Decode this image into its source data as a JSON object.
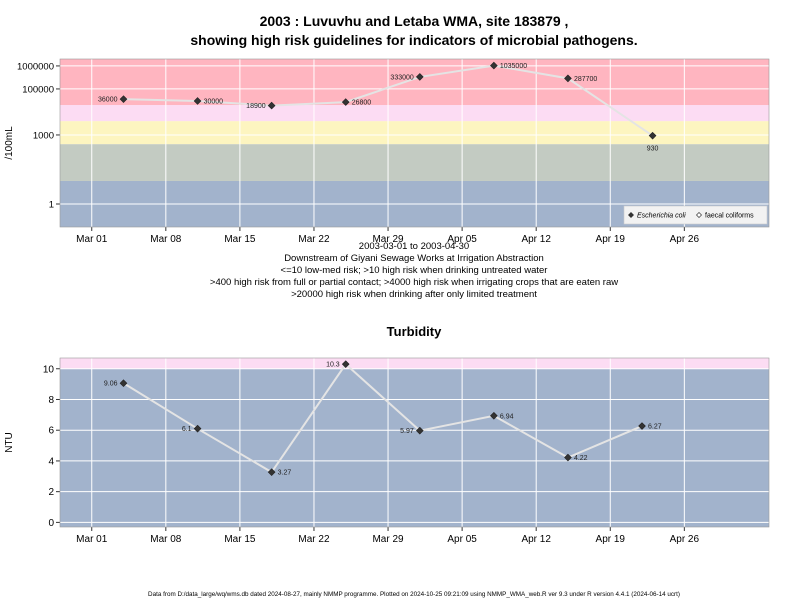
{
  "figure": {
    "title_line1": "2003 : Luvuvhu and Letaba WMA, site 183879 ,",
    "title_line2": "showing high risk guidelines for indicators of microbial pathogens.",
    "footer": "Data from D:/data_large/wq/wms.db dated 2024-08-27, mainly NMMP programme. Plotted on 2024-10-25 09:21:09 using NMMP_WMA_web.R ver 9.3 under R version 4.4.1 (2024-06-14 ucrt)"
  },
  "chart_data": [
    {
      "type": "line",
      "ylabel": "/100mL",
      "yscale": "log10",
      "ylim": [
        0.1,
        2000000
      ],
      "xlim": [
        "2003-02-26",
        "2003-05-04"
      ],
      "x_ticks": [
        {
          "date": "2003-03-01",
          "label": "Mar 01"
        },
        {
          "date": "2003-03-08",
          "label": "Mar 08"
        },
        {
          "date": "2003-03-15",
          "label": "Mar 15"
        },
        {
          "date": "2003-03-22",
          "label": "Mar 22"
        },
        {
          "date": "2003-03-29",
          "label": "Mar 29"
        },
        {
          "date": "2003-04-05",
          "label": "Apr 05"
        },
        {
          "date": "2003-04-12",
          "label": "Apr 12"
        },
        {
          "date": "2003-04-19",
          "label": "Apr 19"
        },
        {
          "date": "2003-04-26",
          "label": "Apr 26"
        }
      ],
      "y_ticks": [
        {
          "value": 1,
          "label": "1"
        },
        {
          "value": 1000,
          "label": "1000"
        },
        {
          "value": 100000,
          "label": "100000"
        },
        {
          "value": 1000000,
          "label": "1000000"
        }
      ],
      "risk_bands": [
        {
          "from": 0.1,
          "to": 10,
          "color": "#a2b3cc"
        },
        {
          "from": 10,
          "to": 400,
          "color": "#c3cbc2"
        },
        {
          "from": 400,
          "to": 4000,
          "color": "#fdf5c0"
        },
        {
          "from": 4000,
          "to": 20000,
          "color": "#fcdcf3"
        },
        {
          "from": 20000,
          "to": 2000000,
          "color": "#ffb5c0"
        }
      ],
      "grid": true,
      "series": [
        {
          "name": "Escherichia coli",
          "points": [
            {
              "date": "2003-03-04",
              "value": 36000,
              "label": "36000",
              "side": "left"
            },
            {
              "date": "2003-03-11",
              "value": 30000,
              "label": "30000",
              "side": "right"
            },
            {
              "date": "2003-03-18",
              "value": 18900,
              "label": "18900",
              "side": "left"
            },
            {
              "date": "2003-03-25",
              "value": 26800,
              "label": "26800",
              "side": "right"
            },
            {
              "date": "2003-04-01",
              "value": 333000,
              "label": "333000",
              "side": "left"
            },
            {
              "date": "2003-04-08",
              "value": 1035000,
              "label": "1035000",
              "side": "right"
            },
            {
              "date": "2003-04-15",
              "value": 287700,
              "label": "287700",
              "side": "right"
            },
            {
              "date": "2003-04-23",
              "value": 930,
              "label": "930",
              "side": "below"
            }
          ]
        }
      ],
      "legend": {
        "placement": "bottom-right",
        "items": [
          {
            "label": "Escherichia coli",
            "italic": true,
            "marker": "filled-diamond"
          },
          {
            "label": "faecal coliforms",
            "italic": false,
            "marker": "open-diamond"
          }
        ]
      },
      "notes": [
        "2003-03-01 to 2003-04-30",
        "Downstream of Giyani Sewage Works at Irrigation Abstraction",
        "<=10 low-med risk; >10 high risk when drinking untreated water",
        ">400 high risk from full or partial contact; >4000 high risk when irrigating crops that are eaten raw",
        ">20000 high risk when drinking after only limited treatment"
      ]
    },
    {
      "type": "line",
      "title": "Turbidity",
      "ylabel": "NTU",
      "ylim": [
        -0.3,
        10.7
      ],
      "xlim": [
        "2003-02-26",
        "2003-05-04"
      ],
      "x_ticks": [
        {
          "date": "2003-03-01",
          "label": "Mar 01"
        },
        {
          "date": "2003-03-08",
          "label": "Mar 08"
        },
        {
          "date": "2003-03-15",
          "label": "Mar 15"
        },
        {
          "date": "2003-03-22",
          "label": "Mar 22"
        },
        {
          "date": "2003-03-29",
          "label": "Mar 29"
        },
        {
          "date": "2003-04-05",
          "label": "Apr 05"
        },
        {
          "date": "2003-04-12",
          "label": "Apr 12"
        },
        {
          "date": "2003-04-19",
          "label": "Apr 19"
        },
        {
          "date": "2003-04-26",
          "label": "Apr 26"
        }
      ],
      "y_ticks": [
        {
          "value": 0,
          "label": "0"
        },
        {
          "value": 2,
          "label": "2"
        },
        {
          "value": 4,
          "label": "4"
        },
        {
          "value": 6,
          "label": "6"
        },
        {
          "value": 8,
          "label": "8"
        },
        {
          "value": 10,
          "label": "10"
        }
      ],
      "risk_bands": [
        {
          "from": -0.3,
          "to": 10,
          "color": "#a2b3cc"
        },
        {
          "from": 10,
          "to": 10.7,
          "color": "#fcdcf3"
        }
      ],
      "grid": true,
      "series": [
        {
          "points": [
            {
              "date": "2003-03-04",
              "value": 9.06,
              "label": "9.06",
              "side": "left"
            },
            {
              "date": "2003-03-11",
              "value": 6.1,
              "label": "6.1",
              "side": "left"
            },
            {
              "date": "2003-03-18",
              "value": 3.27,
              "label": "3.27",
              "side": "right"
            },
            {
              "date": "2003-03-25",
              "value": 10.3,
              "label": "10.3",
              "side": "left"
            },
            {
              "date": "2003-04-01",
              "value": 5.97,
              "label": "5.97",
              "side": "left"
            },
            {
              "date": "2003-04-08",
              "value": 6.94,
              "label": "6.94",
              "side": "right"
            },
            {
              "date": "2003-04-15",
              "value": 4.22,
              "label": "4.22",
              "side": "right"
            },
            {
              "date": "2003-04-22",
              "value": 6.27,
              "label": "6.27",
              "side": "right"
            }
          ]
        }
      ]
    }
  ]
}
